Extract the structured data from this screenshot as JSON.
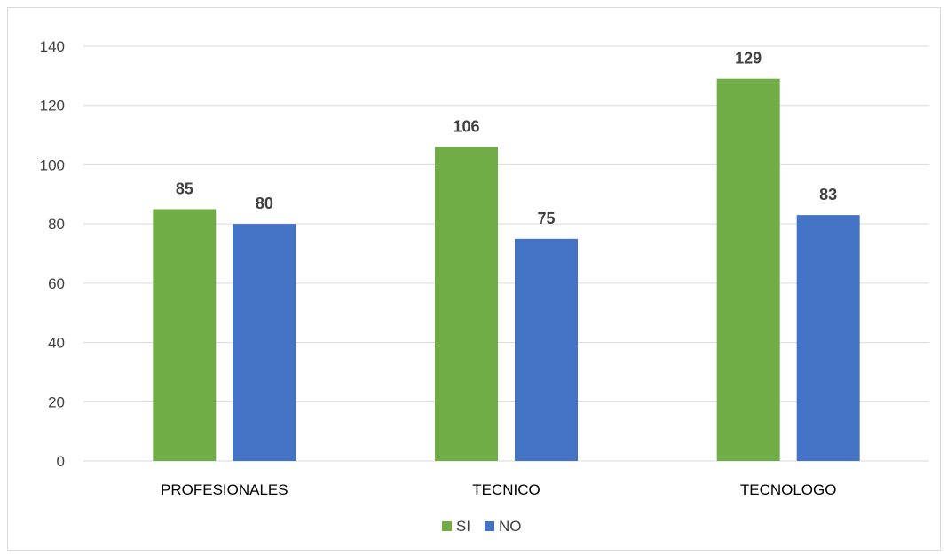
{
  "chart_data": {
    "type": "bar",
    "categories": [
      "PROFESIONALES",
      "TECNICO",
      "TECNOLOGO"
    ],
    "series": [
      {
        "name": "SI",
        "values": [
          85,
          106,
          129
        ],
        "color": "#70AD47"
      },
      {
        "name": "NO",
        "values": [
          80,
          75,
          83
        ],
        "color": "#4472C4"
      }
    ],
    "yticks": [
      "0",
      "20",
      "40",
      "60",
      "80",
      "100",
      "120",
      "140"
    ],
    "ylim": [
      0,
      140
    ],
    "grid": true,
    "legend": "bottom",
    "title": "",
    "xlabel": "",
    "ylabel": ""
  }
}
